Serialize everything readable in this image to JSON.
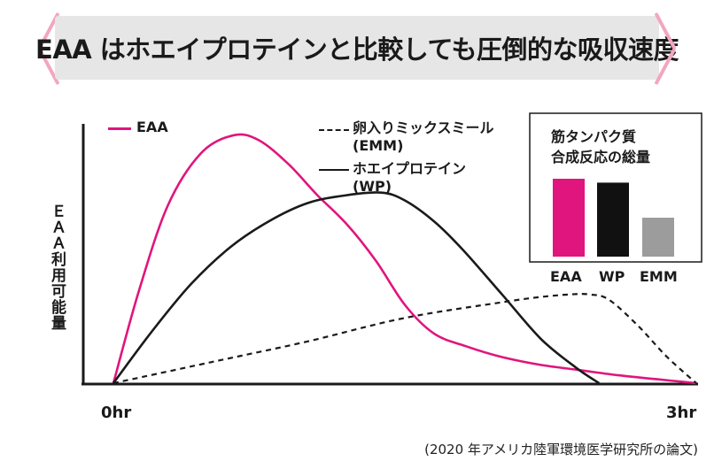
{
  "banner": {
    "title": "EAA はホエイプロテインと比較しても圧倒的な吸収速度",
    "box_color": "#e6e6e6",
    "bracket_color": "#f2a6c0"
  },
  "chart_data": [
    {
      "type": "line",
      "title": "",
      "ylabel": "ＥＡＡ利用可能量",
      "xlabel": "",
      "x_tick_labels": [
        "0hr",
        "3hr"
      ],
      "xlim": [
        0,
        3
      ],
      "ylim": [
        0,
        100
      ],
      "grid": false,
      "series": [
        {
          "name": "EAA",
          "color": "#e0157d",
          "dash": false,
          "x": [
            0,
            0.13,
            0.28,
            0.45,
            0.62,
            0.75,
            0.9,
            1.05,
            1.2,
            1.35,
            1.5,
            1.65,
            1.82,
            2.0,
            2.2,
            2.4,
            2.6,
            2.8,
            3.0
          ],
          "y": [
            0,
            35,
            68,
            88,
            95,
            93,
            84,
            72,
            61,
            47,
            30,
            19,
            14,
            10,
            7,
            5,
            3,
            1.5,
            0
          ]
        },
        {
          "name": "ホエイプロテイン\n(WP)",
          "color": "#1a1a1a",
          "dash": false,
          "x": [
            0,
            0.2,
            0.4,
            0.6,
            0.8,
            1.0,
            1.2,
            1.38,
            1.5,
            1.65,
            1.8,
            2.0,
            2.2,
            2.38,
            2.5
          ],
          "y": [
            0,
            20,
            38,
            52,
            62,
            69,
            72,
            73,
            70,
            62,
            51,
            34,
            17,
            6,
            0
          ]
        },
        {
          "name": "卵入りミックスミール\n(EMM)",
          "color": "#1a1a1a",
          "dash": true,
          "x": [
            0,
            0.5,
            1.0,
            1.5,
            2.0,
            2.2,
            2.35,
            2.45,
            2.55,
            2.7,
            2.85,
            3.0
          ],
          "y": [
            0,
            8,
            16,
            25,
            31,
            33,
            34,
            34,
            32,
            22,
            10,
            0
          ]
        }
      ]
    },
    {
      "type": "bar",
      "title": "筋タンパク質\n合成反応の総量",
      "categories": [
        "EAA",
        "WP",
        "EMM"
      ],
      "values": [
        100,
        95,
        50
      ],
      "colors": [
        "#e0157d",
        "#111111",
        "#9c9c9c"
      ],
      "ylim": [
        0,
        100
      ]
    }
  ],
  "legend": {
    "eaa": "EAA",
    "emm_line1": "卵入りミックスミール",
    "emm_line2": "(EMM)",
    "wp_line1": "ホエイプロテイン",
    "wp_line2": "(WP)"
  },
  "inset": {
    "title_line1": "筋タンパク質",
    "title_line2": "合成反応の総量"
  },
  "source": "(2020 年アメリカ陸軍環境医学研究所の論文)"
}
